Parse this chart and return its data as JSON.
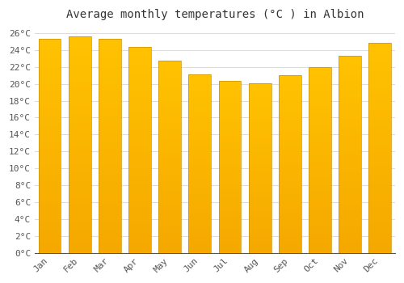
{
  "title": "Average monthly temperatures (°C ) in Albion",
  "months": [
    "Jan",
    "Feb",
    "Mar",
    "Apr",
    "May",
    "Jun",
    "Jul",
    "Aug",
    "Sep",
    "Oct",
    "Nov",
    "Dec"
  ],
  "values": [
    25.3,
    25.6,
    25.3,
    24.4,
    22.7,
    21.1,
    20.3,
    20.1,
    21.0,
    22.0,
    23.3,
    24.8
  ],
  "bar_color_top": "#FFC200",
  "bar_color_bottom": "#F5A800",
  "bar_edge_color": "#C8900A",
  "background_color": "#FFFFFF",
  "grid_color": "#DDDDDD",
  "ylim": [
    0,
    27
  ],
  "ytick_step": 2,
  "title_fontsize": 10,
  "tick_fontsize": 8,
  "font_family": "monospace"
}
